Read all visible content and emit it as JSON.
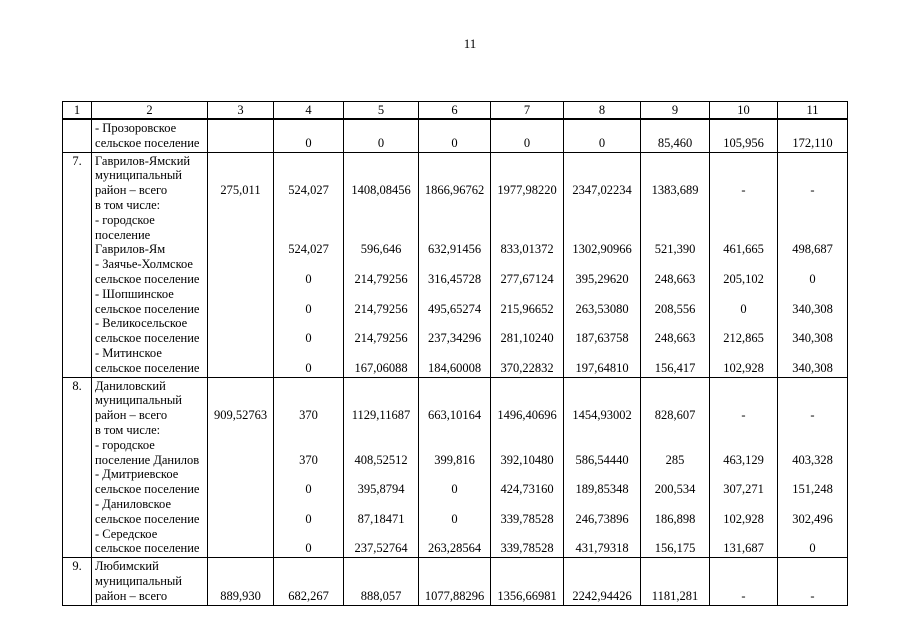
{
  "page": {
    "number": "11"
  },
  "table": {
    "header": [
      "1",
      "2",
      "3",
      "4",
      "5",
      "6",
      "7",
      "8",
      "9",
      "10",
      "11"
    ],
    "sections": [
      {
        "num": "",
        "lines": [
          {
            "label": "- Прозоровское"
          },
          {
            "label": "сельское поселение",
            "values": [
              "",
              "0",
              "0",
              "0",
              "0",
              "0",
              "85,460",
              "105,956",
              "172,110"
            ]
          }
        ]
      },
      {
        "num": "7.",
        "lines": [
          {
            "label": "Гаврилов-Ямский"
          },
          {
            "label": "муниципальный"
          },
          {
            "label": "район – всего",
            "values": [
              "275,011",
              "524,027",
              "1408,08456",
              "1866,96762",
              "1977,98220",
              "2347,02234",
              "1383,689",
              "-",
              "-"
            ]
          },
          {
            "label": "в том числе:"
          },
          {
            "label": "- городское"
          },
          {
            "label": "поселение"
          },
          {
            "label": "Гаврилов-Ям",
            "values": [
              "",
              "524,027",
              "596,646",
              "632,91456",
              "833,01372",
              "1302,90966",
              "521,390",
              "461,665",
              "498,687"
            ]
          },
          {
            "label": "- Заячье-Холмское"
          },
          {
            "label": "сельское поселение",
            "values": [
              "",
              "0",
              "214,79256",
              "316,45728",
              "277,67124",
              "395,29620",
              "248,663",
              "205,102",
              "0"
            ]
          },
          {
            "label": "- Шопшинское"
          },
          {
            "label": "сельское поселение",
            "values": [
              "",
              "0",
              "214,79256",
              "495,65274",
              "215,96652",
              "263,53080",
              "208,556",
              "0",
              "340,308"
            ]
          },
          {
            "label": "- Великосельское"
          },
          {
            "label": "сельское поселение",
            "values": [
              "",
              "0",
              "214,79256",
              "237,34296",
              "281,10240",
              "187,63758",
              "248,663",
              "212,865",
              "340,308"
            ]
          },
          {
            "label": "- Митинское"
          },
          {
            "label": "сельское поселение",
            "values": [
              "",
              "0",
              "167,06088",
              "184,60008",
              "370,22832",
              "197,64810",
              "156,417",
              "102,928",
              "340,308"
            ]
          }
        ]
      },
      {
        "num": "8.",
        "lines": [
          {
            "label": "Даниловский"
          },
          {
            "label": "муниципальный"
          },
          {
            "label": "район – всего",
            "values": [
              "909,52763",
              "370",
              "1129,11687",
              "663,10164",
              "1496,40696",
              "1454,93002",
              "828,607",
              "-",
              "-"
            ]
          },
          {
            "label": "в том числе:"
          },
          {
            "label": "- городское"
          },
          {
            "label": "поселение Данилов",
            "values": [
              "",
              "370",
              "408,52512",
              "399,816",
              "392,10480",
              "586,54440",
              "285",
              "463,129",
              "403,328"
            ]
          },
          {
            "label": "- Дмитриевское"
          },
          {
            "label": "сельское поселение",
            "values": [
              "",
              "0",
              "395,8794",
              "0",
              "424,73160",
              "189,85348",
              "200,534",
              "307,271",
              "151,248"
            ]
          },
          {
            "label": "- Даниловское"
          },
          {
            "label": "сельское поселение",
            "values": [
              "",
              "0",
              "87,18471",
              "0",
              "339,78528",
              "246,73896",
              "186,898",
              "102,928",
              "302,496"
            ]
          },
          {
            "label": "- Середское"
          },
          {
            "label": "сельское поселение",
            "values": [
              "",
              "0",
              "237,52764",
              "263,28564",
              "339,78528",
              "431,79318",
              "156,175",
              "131,687",
              "0"
            ]
          }
        ]
      },
      {
        "num": "9.",
        "lines": [
          {
            "label": "Любимский"
          },
          {
            "label": "муниципальный"
          },
          {
            "label": "район – всего",
            "values": [
              "889,930",
              "682,267",
              "888,057",
              "1077,88296",
              "1356,66981",
              "2242,94426",
              "1181,281",
              "-",
              "-"
            ]
          }
        ]
      }
    ]
  }
}
